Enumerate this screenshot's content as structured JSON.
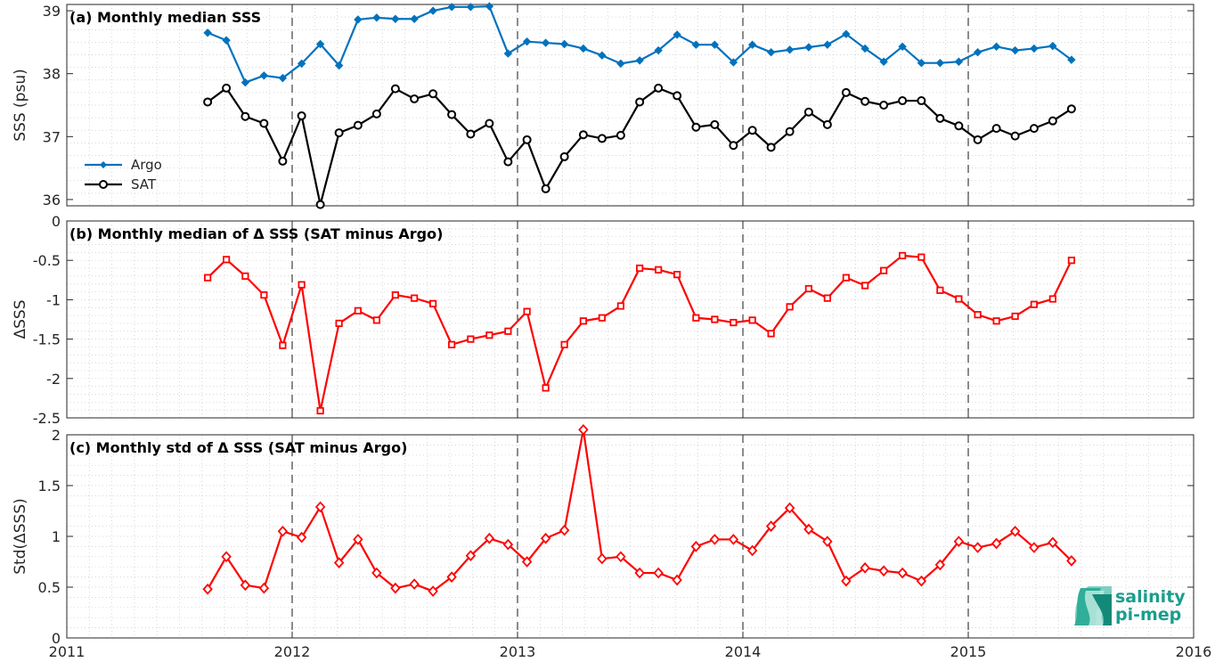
{
  "chart_data": [
    {
      "type": "line",
      "title": "(a) Monthly median SSS",
      "ylabel": "SSS (psu)",
      "ylim": [
        35.9,
        39.1
      ],
      "yticks": [
        "36",
        "37",
        "38",
        "39"
      ],
      "xlim": [
        2011,
        2016
      ],
      "x": [
        2011.625,
        2011.708,
        2011.792,
        2011.875,
        2011.958,
        2012.042,
        2012.125,
        2012.208,
        2012.292,
        2012.375,
        2012.458,
        2012.542,
        2012.625,
        2012.708,
        2012.792,
        2012.875,
        2012.958,
        2013.042,
        2013.125,
        2013.208,
        2013.292,
        2013.375,
        2013.458,
        2013.542,
        2013.625,
        2013.708,
        2013.792,
        2013.875,
        2013.958,
        2014.042,
        2014.125,
        2014.208,
        2014.292,
        2014.375,
        2014.458,
        2014.542,
        2014.625,
        2014.708,
        2014.792,
        2014.875,
        2014.958,
        2015.042,
        2015.125,
        2015.208,
        2015.292,
        2015.375,
        2015.458
      ],
      "series": [
        {
          "name": "Argo",
          "color": "#0072bd",
          "marker": "diamond-filled",
          "values": [
            38.65,
            38.53,
            37.86,
            37.97,
            37.93,
            38.16,
            38.47,
            38.13,
            38.86,
            38.89,
            38.87,
            38.87,
            39.0,
            39.06,
            39.06,
            39.07,
            38.32,
            38.51,
            38.49,
            38.47,
            38.4,
            38.29,
            38.16,
            38.21,
            38.37,
            38.62,
            38.46,
            38.46,
            38.18,
            38.46,
            38.34,
            38.38,
            38.42,
            38.46,
            38.63,
            38.4,
            38.19,
            38.43,
            38.17,
            38.17,
            38.19,
            38.34,
            38.43,
            38.37,
            38.4,
            38.44,
            38.22
          ]
        },
        {
          "name": "SAT",
          "color": "#000000",
          "marker": "circle",
          "values": [
            37.55,
            37.77,
            37.32,
            37.21,
            36.61,
            37.33,
            35.92,
            37.06,
            37.18,
            37.36,
            37.76,
            37.6,
            37.68,
            37.35,
            37.04,
            37.21,
            36.6,
            36.95,
            36.17,
            36.68,
            37.03,
            36.97,
            37.02,
            37.55,
            37.77,
            37.65,
            37.15,
            37.19,
            36.86,
            37.1,
            36.83,
            37.08,
            37.39,
            37.19,
            37.7,
            37.56,
            37.5,
            37.57,
            37.57,
            37.29,
            37.17,
            36.95,
            37.13,
            37.01,
            37.13,
            37.25,
            37.44
          ]
        }
      ],
      "legend": "middle-left",
      "grid": "minor-dotted"
    },
    {
      "type": "line",
      "title": "(b) Monthly median of Δ SSS (SAT minus Argo)",
      "ylabel": "ΔSSS",
      "ylim": [
        -2.5,
        0
      ],
      "yticks": [
        "-2.5",
        "-2",
        "-1.5",
        "-1",
        "-0.5",
        "0"
      ],
      "xlim": [
        2011,
        2016
      ],
      "x": [
        2011.625,
        2011.708,
        2011.792,
        2011.875,
        2011.958,
        2012.042,
        2012.125,
        2012.208,
        2012.292,
        2012.375,
        2012.458,
        2012.542,
        2012.625,
        2012.708,
        2012.792,
        2012.875,
        2012.958,
        2013.042,
        2013.125,
        2013.208,
        2013.292,
        2013.375,
        2013.458,
        2013.542,
        2013.625,
        2013.708,
        2013.792,
        2013.875,
        2013.958,
        2014.042,
        2014.125,
        2014.208,
        2014.292,
        2014.375,
        2014.458,
        2014.542,
        2014.625,
        2014.708,
        2014.792,
        2014.875,
        2014.958,
        2015.042,
        2015.125,
        2015.208,
        2015.292,
        2015.375,
        2015.458
      ],
      "series": [
        {
          "color": "#ff0000",
          "marker": "square",
          "values": [
            -0.72,
            -0.49,
            -0.7,
            -0.94,
            -1.58,
            -0.81,
            -2.41,
            -1.3,
            -1.14,
            -1.26,
            -0.94,
            -0.98,
            -1.05,
            -1.57,
            -1.5,
            -1.45,
            -1.4,
            -1.15,
            -2.12,
            -1.57,
            -1.27,
            -1.23,
            -1.08,
            -0.6,
            -0.62,
            -0.68,
            -1.23,
            -1.25,
            -1.29,
            -1.26,
            -1.43,
            -1.09,
            -0.86,
            -0.98,
            -0.72,
            -0.82,
            -0.63,
            -0.44,
            -0.46,
            -0.88,
            -0.99,
            -1.19,
            -1.27,
            -1.21,
            -1.06,
            -0.99,
            -0.5
          ]
        }
      ],
      "grid": "minor-dotted"
    },
    {
      "type": "line",
      "title": "(c) Monthly std of Δ SSS (SAT minus Argo)",
      "ylabel": "Std(ΔSSS)",
      "ylim": [
        0,
        2
      ],
      "yticks": [
        "0",
        "0.5",
        "1",
        "1.5",
        "2"
      ],
      "xlim": [
        2011,
        2016
      ],
      "xticks": [
        "2011",
        "2012",
        "2013",
        "2014",
        "2015",
        "2016"
      ],
      "x": [
        2011.625,
        2011.708,
        2011.792,
        2011.875,
        2011.958,
        2012.042,
        2012.125,
        2012.208,
        2012.292,
        2012.375,
        2012.458,
        2012.542,
        2012.625,
        2012.708,
        2012.792,
        2012.875,
        2012.958,
        2013.042,
        2013.125,
        2013.208,
        2013.292,
        2013.375,
        2013.458,
        2013.542,
        2013.625,
        2013.708,
        2013.792,
        2013.875,
        2013.958,
        2014.042,
        2014.125,
        2014.208,
        2014.292,
        2014.375,
        2014.458,
        2014.542,
        2014.625,
        2014.708,
        2014.792,
        2014.875,
        2014.958,
        2015.042,
        2015.125,
        2015.208,
        2015.292,
        2015.375,
        2015.458
      ],
      "series": [
        {
          "color": "#ff0000",
          "marker": "diamond",
          "values": [
            0.48,
            0.8,
            0.52,
            0.49,
            1.05,
            0.99,
            1.29,
            0.74,
            0.97,
            0.64,
            0.49,
            0.53,
            0.46,
            0.6,
            0.81,
            0.98,
            0.92,
            0.75,
            0.98,
            1.06,
            2.05,
            0.78,
            0.8,
            0.64,
            0.64,
            0.57,
            0.9,
            0.97,
            0.97,
            0.86,
            1.1,
            1.28,
            1.07,
            0.95,
            0.56,
            0.69,
            0.66,
            0.64,
            0.56,
            0.72,
            0.95,
            0.89,
            0.93,
            1.05,
            0.89,
            0.94,
            0.76
          ]
        }
      ],
      "grid": "minor-dotted"
    }
  ],
  "logo": {
    "line1": "salinity",
    "line2": "pi-mep",
    "color": "#1a9e8c"
  }
}
